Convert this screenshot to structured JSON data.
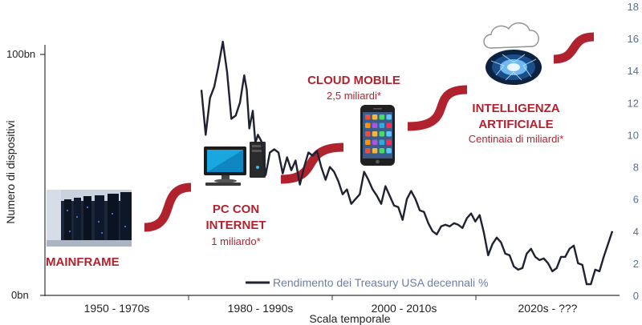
{
  "chart_data": {
    "type": "line",
    "ylabel": "Numero di dispositivi",
    "xlabel": "Scala temporale",
    "left_axis_ticks": [
      "100bn",
      "0bn"
    ],
    "right_axis": {
      "ylim": [
        0,
        18
      ],
      "ticks": [
        0,
        2,
        4,
        6,
        8,
        10,
        12,
        14,
        16,
        18
      ],
      "color": "#5a6e96"
    },
    "x_categories": [
      "1950 - 1970s",
      "1980 - 1990s",
      "2000 - 2010s",
      "2020s - ???"
    ],
    "series": [
      {
        "name": "Rendimento dei Treasury USA decennali %",
        "color": "#1f2230",
        "x": [
          1975.0,
          1975.5,
          1976.0,
          1976.5,
          1977.0,
          1977.5,
          1978.0,
          1978.5,
          1979.0,
          1979.5,
          1980.0,
          1980.3,
          1980.6,
          1981.0,
          1981.3,
          1981.6,
          1982.0,
          1982.5,
          1983.0,
          1983.5,
          1984.0,
          1984.5,
          1985.0,
          1985.5,
          1986.0,
          1986.5,
          1987.0,
          1987.5,
          1988.0,
          1988.5,
          1989.0,
          1989.5,
          1990.0,
          1990.5,
          1991.0,
          1991.5,
          1992.0,
          1992.5,
          1993.0,
          1993.5,
          1994.0,
          1994.5,
          1995.0,
          1995.5,
          1996.0,
          1996.5,
          1997.0,
          1997.5,
          1998.0,
          1998.5,
          1999.0,
          1999.5,
          2000.0,
          2000.5,
          2001.0,
          2001.5,
          2002.0,
          2002.5,
          2003.0,
          2003.5,
          2004.0,
          2004.5,
          2005.0,
          2005.5,
          2006.0,
          2006.5,
          2007.0,
          2007.5,
          2008.0,
          2008.5,
          2009.0,
          2009.5,
          2010.0,
          2010.5,
          2011.0,
          2011.5,
          2012.0,
          2012.5,
          2013.0,
          2013.5,
          2014.0,
          2014.5,
          2015.0,
          2015.5,
          2016.0,
          2016.5,
          2017.0,
          2017.5,
          2018.0,
          2018.5,
          2019.0,
          2019.5,
          2020.0,
          2020.5,
          2021.0,
          2021.5,
          2022.0,
          2022.5,
          2023.0
        ],
        "values": [
          12.8,
          10.0,
          12.3,
          13.0,
          14.3,
          15.8,
          13.9,
          11.0,
          11.2,
          12.0,
          13.7,
          12.8,
          10.4,
          11.5,
          9.5,
          10.0,
          9.6,
          7.5,
          8.9,
          9.1,
          8.9,
          7.6,
          8.6,
          7.8,
          8.4,
          6.9,
          8.0,
          8.9,
          8.7,
          9.0,
          8.0,
          7.2,
          8.0,
          7.7,
          7.1,
          6.3,
          6.6,
          5.7,
          6.0,
          6.3,
          7.7,
          7.2,
          6.6,
          6.2,
          5.7,
          6.8,
          6.2,
          5.6,
          5.5,
          4.7,
          6.0,
          6.5,
          6.0,
          5.3,
          5.2,
          4.5,
          4.0,
          3.8,
          4.3,
          4.4,
          4.3,
          4.5,
          4.4,
          4.2,
          4.8,
          5.1,
          4.6,
          5.0,
          3.9,
          2.5,
          3.2,
          3.6,
          3.3,
          2.6,
          2.5,
          1.8,
          1.6,
          1.7,
          2.6,
          2.9,
          2.4,
          2.2,
          2.3,
          2.0,
          1.5,
          1.7,
          2.4,
          2.4,
          2.9,
          3.1,
          2.0,
          1.9,
          0.7,
          0.7,
          1.6,
          1.5,
          2.4,
          3.2,
          4.0
        ]
      }
    ],
    "annotations": [
      {
        "title": "MAINFRAME",
        "subtitle": ""
      },
      {
        "title": "PC CON INTERNET",
        "title_lines": [
          "PC CON",
          "INTERNET"
        ],
        "subtitle": "1 miliardo*"
      },
      {
        "title": "CLOUD MOBILE",
        "subtitle": "2,5 miliardi*"
      },
      {
        "title": "INTELLIGENZA ARTIFICIALE",
        "title_lines": [
          "INTELLIGENZA",
          "ARTIFICIALE"
        ],
        "subtitle": "Centinaia di miliardi*"
      }
    ],
    "accent_color": "#b0232e",
    "grid": false,
    "legend_position": "bottom-center"
  }
}
